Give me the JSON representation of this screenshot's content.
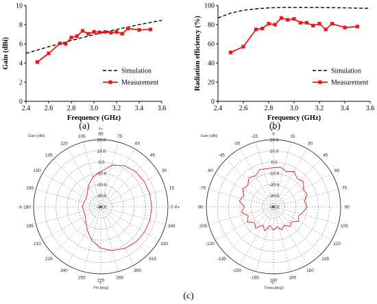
{
  "panels": {
    "a": "(a)",
    "b": "(b)",
    "c": "(c)"
  },
  "colors": {
    "measurement": "#e8191b",
    "simulation": "#000000",
    "polar_trace": "#e8191b",
    "polar_grid": "#777777"
  },
  "chart_data": [
    {
      "type": "line",
      "panel": "a",
      "title": "",
      "xlabel": "Frequency (GHz)",
      "ylabel": "Gain (dBi)",
      "xlim": [
        2.4,
        3.6
      ],
      "ylim": [
        0,
        10
      ],
      "xticks": [
        "2.4",
        "2.6",
        "2.8",
        "3.0",
        "3.2",
        "3.4",
        "3.6"
      ],
      "yticks": [
        "0",
        "2",
        "4",
        "6",
        "8",
        "10"
      ],
      "legend": {
        "placement": "bottom-right",
        "items": [
          "Simulation",
          "Measurement"
        ]
      },
      "series": [
        {
          "name": "Simulation",
          "style": "dashed",
          "x": [
            2.4,
            2.6,
            2.8,
            3.0,
            3.2,
            3.4,
            3.6
          ],
          "y": [
            5.0,
            5.7,
            6.35,
            6.95,
            7.5,
            8.0,
            8.45
          ]
        },
        {
          "name": "Measurement",
          "style": "solid-square",
          "x": [
            2.5,
            2.6,
            2.7,
            2.75,
            2.8,
            2.85,
            2.9,
            2.95,
            3.0,
            3.05,
            3.1,
            3.15,
            3.2,
            3.25,
            3.3,
            3.4,
            3.5
          ],
          "y": [
            4.1,
            5.0,
            6.05,
            6.0,
            6.65,
            6.8,
            7.35,
            7.05,
            7.25,
            7.2,
            7.25,
            7.15,
            7.25,
            7.05,
            7.6,
            7.45,
            7.5
          ]
        }
      ]
    },
    {
      "type": "line",
      "panel": "b",
      "title": "",
      "xlabel": "Frequency (GHz)",
      "ylabel": "Radiation efficiency (%)",
      "xlim": [
        2.4,
        3.6
      ],
      "ylim": [
        0,
        100
      ],
      "xticks": [
        "2.4",
        "2.6",
        "2.8",
        "3.0",
        "3.2",
        "3.4",
        "3.6"
      ],
      "yticks": [
        "0",
        "20",
        "40",
        "60",
        "80",
        "100"
      ],
      "legend": {
        "placement": "bottom-right",
        "items": [
          "Simulation",
          "Measurement"
        ]
      },
      "series": [
        {
          "name": "Simulation",
          "style": "dashed",
          "x": [
            2.4,
            2.5,
            2.6,
            2.7,
            2.8,
            2.9,
            3.0,
            3.1,
            3.2,
            3.3,
            3.4,
            3.5,
            3.6
          ],
          "y": [
            87,
            92,
            95,
            96.5,
            97.5,
            98,
            98,
            98,
            98,
            97.8,
            97.5,
            97.2,
            97
          ]
        },
        {
          "name": "Measurement",
          "style": "solid-square",
          "x": [
            2.5,
            2.6,
            2.7,
            2.75,
            2.8,
            2.85,
            2.9,
            2.95,
            3.0,
            3.05,
            3.1,
            3.15,
            3.2,
            3.25,
            3.3,
            3.4,
            3.5
          ],
          "y": [
            51,
            57,
            75,
            76,
            81,
            80,
            87,
            85,
            86,
            82,
            82,
            79,
            81,
            75,
            81,
            77,
            78
          ]
        }
      ]
    },
    {
      "type": "polar",
      "panel": "c-left",
      "top_label": "Gain [dBi]",
      "axis_name": "Phi [deg]",
      "left_end_label": "X-180",
      "right_end_label": "0 X+",
      "top_axis_label": "Y+",
      "bottom_axis_label": "Y-",
      "rlim": [
        -40,
        20
      ],
      "radial_labels": [
        "20.0",
        "10.0",
        "0.0",
        "-10.0",
        "-20.0",
        "-30.0",
        "-40.0"
      ],
      "angle_labels": [
        "0",
        "15",
        "30",
        "45",
        "60",
        "75",
        "90",
        "105",
        "120",
        "135",
        "150",
        "165",
        "180",
        "195",
        "210",
        "225",
        "240",
        "255",
        "270",
        "285",
        "300",
        "315",
        "330",
        "345"
      ],
      "pattern": {
        "angles_deg": [
          0,
          15,
          30,
          45,
          60,
          75,
          90,
          105,
          120,
          135,
          150,
          165,
          180,
          195,
          210,
          225,
          240,
          255,
          270,
          285,
          300,
          315,
          330,
          345
        ],
        "gain_dbi": [
          5.5,
          5.3,
          4.9,
          4.3,
          2.5,
          -1.5,
          -8.5,
          -12.5,
          -18,
          -23,
          -25,
          -24.5,
          -23.5,
          -24.5,
          -24,
          -21,
          -16,
          -9,
          -3,
          0.5,
          3,
          4.5,
          5.2,
          5.5
        ]
      }
    },
    {
      "type": "polar",
      "panel": "c-right",
      "top_label": "Gain [dBi]",
      "axis_name": "Theta [deg]",
      "top_axis_label": "Z+",
      "bottom_axis_label": "Z-",
      "rlim": [
        -40,
        20
      ],
      "radial_labels": [
        "20.0",
        "10.0",
        "0.0",
        "-10.0",
        "-20.0",
        "-30.0",
        "-40.0"
      ],
      "angle_labels": [
        "0",
        "15",
        "30",
        "45",
        "60",
        "75",
        "90",
        "105",
        "120",
        "135",
        "150",
        "165",
        "180",
        "-165",
        "-150",
        "-135",
        "-120",
        "-105",
        "-90",
        "-75",
        "-60",
        "-45",
        "-30",
        "-15"
      ],
      "pattern": {
        "angles_deg": [
          0,
          10,
          20,
          30,
          40,
          50,
          60,
          70,
          80,
          90,
          100,
          110,
          120,
          130,
          140,
          150,
          160,
          170,
          180,
          190,
          200,
          210,
          220,
          230,
          240,
          250,
          260,
          270,
          280,
          290,
          300,
          310,
          320,
          330,
          340,
          350
        ],
        "gain_dbi": [
          -5,
          -4,
          -6.5,
          -3.5,
          -7,
          -5,
          -9,
          -8,
          -12,
          -10,
          -13,
          -16,
          -14,
          -19,
          -17,
          -21,
          -18,
          -22,
          -19,
          -23,
          -17,
          -21,
          -15,
          -18,
          -13,
          -16,
          -11,
          -14,
          -9,
          -12,
          -8,
          -10,
          -6,
          -8,
          -4.5,
          -5.5
        ]
      }
    }
  ]
}
